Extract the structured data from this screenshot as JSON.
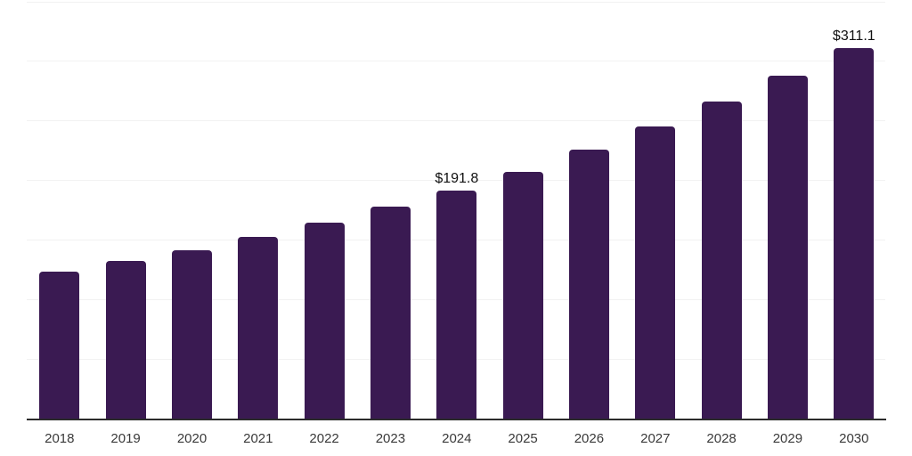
{
  "chart_data": {
    "type": "bar",
    "categories": [
      "2018",
      "2019",
      "2020",
      "2021",
      "2022",
      "2023",
      "2024",
      "2025",
      "2026",
      "2027",
      "2028",
      "2029",
      "2030"
    ],
    "values": [
      123.5,
      132.2,
      141.7,
      152.3,
      164.6,
      178.4,
      191.8,
      207.5,
      226.1,
      245.5,
      266.4,
      287.6,
      311.1
    ],
    "value_labels": [
      "",
      "",
      "",
      "",
      "",
      "",
      "$191.8",
      "",
      "",
      "",
      "",
      "",
      "$311.1"
    ],
    "title": "",
    "xlabel": "",
    "ylabel": "",
    "ylim": [
      0,
      350
    ],
    "grid_step": 50,
    "grid": true,
    "legend": false,
    "y_axis_labels_visible": false,
    "colors": {
      "bar": "#3A1A52",
      "gridline": "#F2F2F2",
      "axis_line": "#2B2B2B",
      "tick_label": "#3A3A3A",
      "value_label": "#111111",
      "background": "#FFFFFF"
    }
  }
}
